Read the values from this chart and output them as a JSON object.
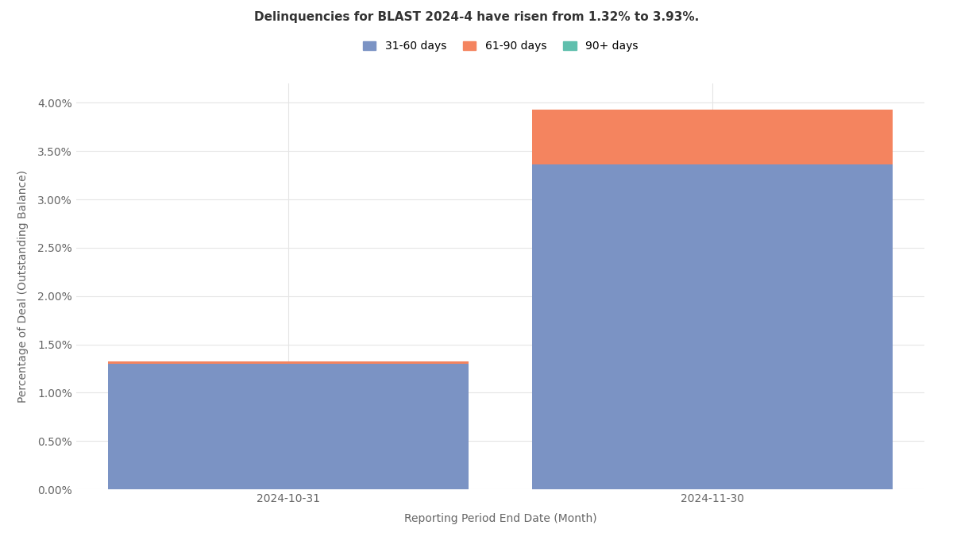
{
  "title": "Delinquencies for BLAST 2024-4 have risen from 1.32% to 3.93%.",
  "xlabel": "Reporting Period End Date (Month)",
  "ylabel": "Percentage of Deal (Outstanding Balance)",
  "categories": [
    "2024-10-31",
    "2024-11-30"
  ],
  "series": {
    "31-60 days": [
      1.3,
      3.36
    ],
    "61-90 days": [
      0.02,
      0.57
    ],
    "90+ days": [
      0.0,
      0.0
    ]
  },
  "colors": {
    "31-60 days": "#7b93c4",
    "61-90 days": "#f4845f",
    "90+ days": "#5fbfad"
  },
  "ylim": [
    0.0,
    0.042
  ],
  "yticks": [
    0.0,
    0.005,
    0.01,
    0.015,
    0.02,
    0.025,
    0.03,
    0.035,
    0.04
  ],
  "ytick_labels": [
    "0.00%",
    "0.50%",
    "1.00%",
    "1.50%",
    "2.00%",
    "2.50%",
    "3.00%",
    "3.50%",
    "4.00%"
  ],
  "title_fontsize": 11,
  "axis_label_fontsize": 10,
  "tick_fontsize": 10,
  "legend_fontsize": 10,
  "background_color": "#ffffff",
  "grid_color": "#e5e5e5",
  "bar_width": 0.85
}
